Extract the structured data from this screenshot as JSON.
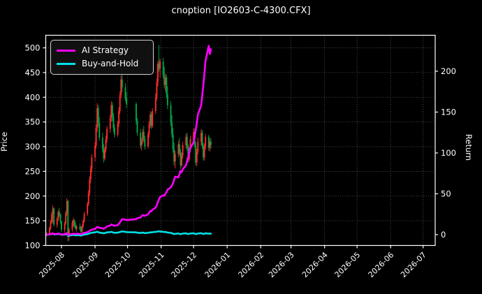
{
  "title": "cnoption [IO2603-C-4300.CFX]",
  "colors": {
    "background": "#000000",
    "text": "#ffffff",
    "spine": "#ffffff",
    "grid": "#8a8a8a",
    "up_candle": "#ff2d2d",
    "down_candle": "#00a846",
    "ai_line": "#ff00ff",
    "bh_line": "#00e0e6"
  },
  "chart_data": {
    "type": "candlestick_with_lines",
    "title": "cnoption [IO2603-C-4300.CFX]",
    "grid": "dotted",
    "legend_position": "upper left",
    "price_axis": {
      "label": "Price",
      "ticks": [
        100,
        150,
        200,
        250,
        300,
        350,
        400,
        450,
        500
      ],
      "range": [
        100,
        512
      ]
    },
    "return_axis": {
      "label": "Return",
      "ticks": [
        0,
        50,
        100,
        150,
        200
      ],
      "range": [
        -15,
        245
      ]
    },
    "x_axis": {
      "tick_labels": [
        "2025-08",
        "2025-09",
        "2025-10",
        "2025-11",
        "2025-12",
        "2026-01",
        "2026-02",
        "2026-03",
        "2026-04",
        "2026-05",
        "2026-06",
        "2026-07"
      ],
      "tick_dates": [
        "2025-08-01",
        "2025-09-01",
        "2025-10-01",
        "2025-11-01",
        "2025-12-01",
        "2026-01-01",
        "2026-02-01",
        "2026-03-01",
        "2026-04-01",
        "2026-05-01",
        "2026-06-01",
        "2026-07-01"
      ]
    },
    "candle_format": [
      "date",
      "open",
      "high",
      "low",
      "close"
    ],
    "candles": [
      [
        "2025-07-18",
        121,
        127,
        118,
        124
      ],
      [
        "2025-07-21",
        124,
        138,
        122,
        135
      ],
      [
        "2025-07-22",
        135,
        152,
        132,
        148
      ],
      [
        "2025-07-23",
        148,
        168,
        144,
        163
      ],
      [
        "2025-07-24",
        163,
        181,
        145,
        175
      ],
      [
        "2025-07-25",
        175,
        177,
        138,
        142
      ],
      [
        "2025-07-28",
        142,
        158,
        136,
        154
      ],
      [
        "2025-07-29",
        154,
        172,
        150,
        168
      ],
      [
        "2025-07-30",
        168,
        176,
        158,
        162
      ],
      [
        "2025-07-31",
        162,
        165,
        144,
        148
      ],
      [
        "2025-08-01",
        148,
        150,
        128,
        132
      ],
      [
        "2025-08-04",
        132,
        148,
        126,
        145
      ],
      [
        "2025-08-05",
        145,
        170,
        142,
        166
      ],
      [
        "2025-08-06",
        166,
        196,
        160,
        190
      ],
      [
        "2025-08-07",
        190,
        192,
        108,
        118
      ],
      [
        "2025-08-08",
        118,
        136,
        110,
        132
      ],
      [
        "2025-08-11",
        132,
        150,
        128,
        146
      ],
      [
        "2025-08-12",
        146,
        156,
        138,
        151
      ],
      [
        "2025-08-13",
        151,
        153,
        136,
        140
      ],
      [
        "2025-08-14",
        140,
        147,
        131,
        134
      ],
      [
        "2025-08-15",
        134,
        142,
        128,
        138
      ],
      [
        "2025-08-18",
        138,
        145,
        130,
        133
      ],
      [
        "2025-08-19",
        133,
        139,
        125,
        128
      ],
      [
        "2025-08-20",
        128,
        142,
        126,
        139
      ],
      [
        "2025-08-21",
        139,
        152,
        135,
        149
      ],
      [
        "2025-08-22",
        149,
        168,
        146,
        164
      ],
      [
        "2025-08-25",
        164,
        188,
        160,
        184
      ],
      [
        "2025-08-26",
        184,
        212,
        180,
        206
      ],
      [
        "2025-08-27",
        206,
        240,
        200,
        234
      ],
      [
        "2025-08-28",
        234,
        262,
        226,
        255
      ],
      [
        "2025-08-29",
        255,
        285,
        248,
        278
      ],
      [
        "2025-09-01",
        278,
        310,
        270,
        302
      ],
      [
        "2025-09-02",
        302,
        345,
        296,
        338
      ],
      [
        "2025-09-03",
        338,
        388,
        330,
        378
      ],
      [
        "2025-09-04",
        378,
        384,
        340,
        348
      ],
      [
        "2025-09-05",
        348,
        360,
        312,
        318
      ],
      [
        "2025-09-08",
        318,
        328,
        288,
        295
      ],
      [
        "2025-09-09",
        295,
        305,
        268,
        276
      ],
      [
        "2025-09-10",
        276,
        300,
        272,
        294
      ],
      [
        "2025-09-11",
        294,
        322,
        288,
        315
      ],
      [
        "2025-09-12",
        315,
        342,
        308,
        336
      ],
      [
        "2025-09-15",
        336,
        365,
        328,
        358
      ],
      [
        "2025-09-16",
        358,
        392,
        350,
        384
      ],
      [
        "2025-09-17",
        384,
        390,
        352,
        360
      ],
      [
        "2025-09-18",
        360,
        368,
        330,
        338
      ],
      [
        "2025-09-19",
        338,
        345,
        318,
        324
      ],
      [
        "2025-09-22",
        324,
        352,
        320,
        346
      ],
      [
        "2025-09-23",
        346,
        380,
        340,
        372
      ],
      [
        "2025-09-24",
        372,
        412,
        366,
        404
      ],
      [
        "2025-09-25",
        404,
        444,
        398,
        436
      ],
      [
        "2025-09-26",
        436,
        458,
        410,
        420
      ],
      [
        "2025-09-29",
        420,
        428,
        392,
        398
      ],
      [
        "2025-09-30",
        398,
        410,
        378,
        386
      ],
      [
        "2025-10-09",
        386,
        390,
        345,
        352
      ],
      [
        "2025-10-10",
        352,
        358,
        322,
        328
      ],
      [
        "2025-10-13",
        328,
        336,
        296,
        302
      ],
      [
        "2025-10-14",
        302,
        318,
        292,
        312
      ],
      [
        "2025-10-15",
        312,
        336,
        306,
        330
      ],
      [
        "2025-10-16",
        330,
        342,
        310,
        316
      ],
      [
        "2025-10-17",
        316,
        322,
        294,
        300
      ],
      [
        "2025-10-20",
        300,
        330,
        296,
        325
      ],
      [
        "2025-10-21",
        325,
        352,
        318,
        346
      ],
      [
        "2025-10-22",
        346,
        372,
        338,
        365
      ],
      [
        "2025-10-23",
        365,
        370,
        336,
        342
      ],
      [
        "2025-10-24",
        342,
        378,
        338,
        372
      ],
      [
        "2025-10-27",
        372,
        408,
        366,
        400
      ],
      [
        "2025-10-28",
        400,
        438,
        394,
        430
      ],
      [
        "2025-10-29",
        430,
        474,
        422,
        468
      ],
      [
        "2025-10-30",
        468,
        506,
        452,
        458
      ],
      [
        "2025-10-31",
        458,
        478,
        440,
        472
      ],
      [
        "2025-11-03",
        472,
        480,
        438,
        444
      ],
      [
        "2025-11-04",
        444,
        462,
        418,
        425
      ],
      [
        "2025-11-05",
        425,
        448,
        412,
        440
      ],
      [
        "2025-11-06",
        440,
        446,
        398,
        405
      ],
      [
        "2025-11-07",
        405,
        422,
        376,
        384
      ],
      [
        "2025-11-10",
        384,
        392,
        342,
        350
      ],
      [
        "2025-11-11",
        350,
        364,
        318,
        325
      ],
      [
        "2025-11-12",
        325,
        338,
        288,
        295
      ],
      [
        "2025-11-13",
        295,
        308,
        262,
        270
      ],
      [
        "2025-11-14",
        270,
        292,
        256,
        285
      ],
      [
        "2025-11-17",
        285,
        312,
        278,
        305
      ],
      [
        "2025-11-18",
        305,
        318,
        282,
        288
      ],
      [
        "2025-11-19",
        288,
        295,
        255,
        262
      ],
      [
        "2025-11-20",
        262,
        288,
        258,
        282
      ],
      [
        "2025-11-21",
        282,
        310,
        276,
        303
      ],
      [
        "2025-11-24",
        303,
        326,
        296,
        320
      ],
      [
        "2025-11-25",
        320,
        328,
        292,
        298
      ],
      [
        "2025-11-26",
        298,
        305,
        268,
        274
      ],
      [
        "2025-11-27",
        274,
        300,
        270,
        294
      ],
      [
        "2025-11-28",
        294,
        322,
        288,
        315
      ],
      [
        "2025-12-01",
        315,
        338,
        305,
        330
      ],
      [
        "2025-12-02",
        330,
        336,
        298,
        304
      ],
      [
        "2025-12-03",
        304,
        310,
        262,
        268
      ],
      [
        "2025-12-04",
        268,
        296,
        260,
        290
      ],
      [
        "2025-12-05",
        290,
        318,
        284,
        310
      ],
      [
        "2025-12-08",
        310,
        335,
        302,
        328
      ],
      [
        "2025-12-09",
        328,
        334,
        296,
        302
      ],
      [
        "2025-12-10",
        302,
        308,
        272,
        278
      ],
      [
        "2025-12-11",
        278,
        306,
        272,
        300
      ],
      [
        "2025-12-12",
        300,
        326,
        294,
        320
      ],
      [
        "2025-12-15",
        320,
        324,
        292,
        298
      ],
      [
        "2025-12-16",
        298,
        316,
        290,
        310
      ],
      [
        "2025-12-17",
        310,
        318,
        296,
        304
      ]
    ],
    "series": [
      {
        "name": "AI Strategy",
        "axis": "return",
        "color": "#ff00ff",
        "values": [
          0,
          0.3,
          0.8,
          1.2,
          1.8,
          0.5,
          0.9,
          1.4,
          1.1,
          0.7,
          0.2,
          0.6,
          1.2,
          2.0,
          -0.5,
          0.1,
          0.8,
          1.3,
          1.0,
          0.6,
          1.1,
          0.8,
          0.4,
          1.0,
          1.6,
          2.2,
          3.0,
          3.8,
          4.6,
          5.5,
          6.2,
          7.0,
          8.2,
          9.5,
          9.0,
          8.4,
          7.8,
          7.2,
          8.0,
          9.0,
          10.0,
          11.2,
          12.5,
          12.0,
          11.4,
          10.8,
          11.8,
          13.2,
          15.0,
          17.0,
          19.0,
          18.4,
          17.8,
          19.0,
          20.0,
          21.0,
          22.5,
          24.0,
          23.5,
          23.0,
          25.0,
          27.0,
          29.0,
          28.5,
          30.5,
          33.0,
          36.0,
          40.0,
          43.0,
          46.0,
          48.0,
          47.5,
          50.0,
          52.0,
          55.0,
          58.0,
          60.0,
          63.0,
          67.0,
          71.0,
          70.0,
          74.0,
          78.0,
          76.5,
          80.0,
          85.0,
          90.0,
          95.0,
          100.0,
          106.0,
          113.0,
          120.0,
          128.0,
          137.0,
          147.0,
          158.0,
          170.0,
          183.0,
          197.0,
          212.0,
          231.0,
          221.0,
          227.0
        ]
      },
      {
        "name": "Buy-and-Hold",
        "axis": "return",
        "color": "#00e0e6",
        "values": [
          0,
          0.2,
          0.5,
          0.8,
          1.2,
          0.3,
          0.6,
          0.9,
          0.7,
          0.4,
          -0.2,
          0.1,
          0.5,
          1.0,
          -1.5,
          -1.0,
          -0.6,
          -0.2,
          -0.5,
          -0.9,
          -0.6,
          -0.8,
          -1.2,
          -0.7,
          -0.3,
          0.1,
          0.6,
          1.1,
          1.5,
          2.0,
          2.4,
          2.8,
          3.2,
          3.6,
          3.0,
          2.5,
          2.0,
          1.6,
          2.0,
          2.4,
          2.8,
          3.1,
          3.4,
          3.0,
          2.6,
          2.2,
          2.5,
          2.9,
          3.2,
          3.6,
          3.9,
          3.5,
          3.1,
          2.8,
          2.4,
          2.0,
          2.3,
          2.6,
          2.2,
          1.9,
          2.2,
          2.6,
          2.9,
          2.7,
          3.0,
          3.3,
          3.6,
          3.9,
          4.1,
          3.8,
          3.5,
          3.1,
          3.4,
          3.0,
          2.6,
          2.1,
          1.7,
          1.2,
          0.7,
          1.0,
          1.4,
          1.0,
          0.5,
          0.9,
          1.3,
          1.6,
          1.2,
          0.7,
          1.0,
          1.4,
          1.7,
          1.2,
          0.6,
          1.0,
          1.4,
          1.8,
          1.3,
          0.8,
          1.2,
          1.6,
          1.1,
          1.4,
          1.2
        ]
      }
    ]
  }
}
